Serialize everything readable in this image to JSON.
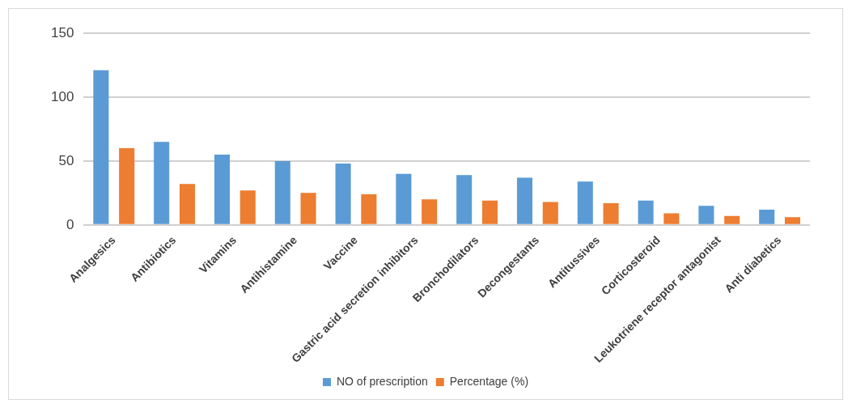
{
  "chart_data": {
    "type": "bar",
    "categories": [
      "Analgesics",
      "Antibiotics",
      "Vitamins",
      "Antihistamine",
      "Vaccine",
      "Gastric acid secretion inhibitors",
      "Bronchodilators",
      "Decongestants",
      "Antitussives",
      "Corticosteroid",
      "Leukotriene receptor antagonist",
      "Anti diabetics"
    ],
    "series": [
      {
        "name": "NO of prescription",
        "color": "#5b9bd5",
        "values": [
          121,
          65,
          55,
          50,
          48,
          40,
          39,
          37,
          34,
          19,
          15,
          12
        ]
      },
      {
        "name": "Percentage (%)",
        "color": "#ed7d31",
        "values": [
          60,
          32,
          27,
          25,
          24,
          20,
          19,
          18,
          17,
          9,
          7,
          6
        ]
      }
    ],
    "ylim": [
      0,
      150
    ],
    "yticks": [
      0,
      50,
      100,
      150
    ],
    "grid": "y",
    "legend": "bottom"
  }
}
